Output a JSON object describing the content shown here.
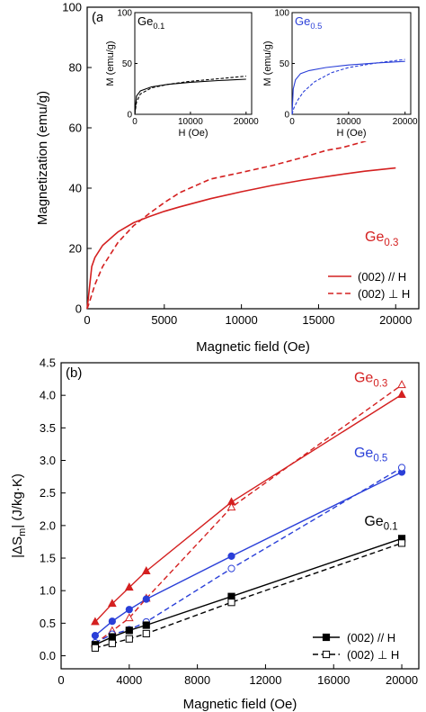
{
  "chart_data": [
    {
      "panel": "(a)",
      "type": "line",
      "xlabel": "Magnetic field (Oe)",
      "ylabel": "Magnetization (emu/g)",
      "xlim": [
        0,
        21500
      ],
      "ylim": [
        0,
        100
      ],
      "xticks": [
        0,
        5000,
        10000,
        15000,
        20000
      ],
      "yticks": [
        0,
        20,
        40,
        60,
        80,
        100
      ],
      "annotation": {
        "base": "Ge",
        "sub": "0.3"
      },
      "legend_position": "bottom-right",
      "series": [
        {
          "name": "(002) // H",
          "style": "solid",
          "color": "#d42020",
          "x": [
            0,
            300,
            500,
            1000,
            2000,
            3000,
            4000,
            5000,
            6000,
            8000,
            10000,
            12000,
            14000,
            16000,
            18000,
            20000
          ],
          "y": [
            0,
            14,
            17,
            21,
            25.5,
            28.5,
            30.5,
            32.3,
            33.8,
            36.5,
            38.8,
            40.9,
            42.7,
            44.2,
            45.6,
            46.7
          ]
        },
        {
          "name": "(002) ⊥ H",
          "style": "dashed",
          "color": "#d42020",
          "x": [
            0,
            200,
            500,
            1000,
            2000,
            3000,
            4000,
            5000,
            6000,
            8000,
            10000,
            12000,
            14000,
            15500,
            16500,
            18000,
            20000
          ],
          "y": [
            0,
            3,
            8,
            14,
            22,
            27.5,
            31.5,
            35.2,
            38.5,
            43,
            45.2,
            47.5,
            50.2,
            52.5,
            53.4,
            55.5,
            59
          ]
        }
      ],
      "insets": [
        {
          "label": {
            "base": "Ge",
            "sub": "0.1"
          },
          "label_color": "#000000",
          "xlabel": "H (Oe)",
          "ylabel": "M (emu/g)",
          "xlim": [
            0,
            21000
          ],
          "ylim": [
            0,
            100
          ],
          "xticks": [
            0,
            10000,
            20000
          ],
          "yticks": [
            0,
            50,
            100
          ],
          "series": [
            {
              "style": "solid",
              "color": "#000000",
              "x": [
                0,
                300,
                1000,
                3000,
                6000,
                10000,
                15000,
                20000
              ],
              "y": [
                0,
                18,
                23,
                27,
                29.5,
                31.5,
                33.2,
                34.5
              ]
            },
            {
              "style": "dashed",
              "color": "#000000",
              "x": [
                0,
                300,
                1000,
                3000,
                6000,
                10000,
                15000,
                20000
              ],
              "y": [
                0,
                12,
                20,
                26,
                29.5,
                32.5,
                35,
                37.5
              ]
            }
          ]
        },
        {
          "label": {
            "base": "Ge",
            "sub": "0.5"
          },
          "label_color": "#2a3fd8",
          "xlabel": "H (Oe)",
          "ylabel": "M (emu/g)",
          "xlim": [
            0,
            21000
          ],
          "ylim": [
            0,
            100
          ],
          "xticks": [
            0,
            10000,
            20000
          ],
          "yticks": [
            0,
            50,
            100
          ],
          "series": [
            {
              "style": "solid",
              "color": "#2a3fd8",
              "x": [
                0,
                200,
                600,
                1500,
                3000,
                6000,
                10000,
                15000,
                20000
              ],
              "y": [
                0,
                25,
                34,
                40,
                43,
                46,
                48.5,
                50.5,
                52
              ]
            },
            {
              "style": "dashed",
              "color": "#2a3fd8",
              "x": [
                0,
                300,
                1000,
                2000,
                4000,
                7000,
                10000,
                15000,
                20000
              ],
              "y": [
                0,
                6,
                14,
                22,
                32,
                41,
                46,
                50.5,
                54
              ]
            }
          ]
        }
      ]
    },
    {
      "panel": "(b)",
      "type": "scatter",
      "xlabel": "Magnetic field (Oe)",
      "ylabel": "|ΔSm| (J/kg·K)",
      "ylabel_parts": {
        "bar": "|",
        "delta": "ΔS",
        "sub": "m",
        "unit": "(J/kg·K)"
      },
      "xlim": [
        0,
        21000
      ],
      "ylim": [
        -0.2,
        4.5
      ],
      "xticks": [
        0,
        4000,
        8000,
        12000,
        16000,
        20000
      ],
      "yticks": [
        0.0,
        0.5,
        1.0,
        1.5,
        2.0,
        2.5,
        3.0,
        3.5,
        4.0,
        4.5
      ],
      "legend_position": "bottom-right",
      "legend": [
        {
          "label": "(002) // H",
          "style": "solid",
          "marker": "square",
          "filled": true
        },
        {
          "label": "(002) ⊥ H",
          "style": "dashed",
          "marker": "square",
          "filled": false
        }
      ],
      "labels": [
        {
          "base": "Ge",
          "sub": "0.3",
          "color": "#d42020",
          "x": 17200,
          "y": 4.2
        },
        {
          "base": "Ge",
          "sub": "0.5",
          "color": "#2a3fd8",
          "x": 17200,
          "y": 3.05
        },
        {
          "base": "Ge",
          "sub": "0.1",
          "color": "#000000",
          "x": 17800,
          "y": 2.0
        }
      ],
      "series": [
        {
          "name": "Ge0.3 // H",
          "color": "#d42020",
          "marker": "triangle",
          "filled": true,
          "style": "solid",
          "x": [
            2000,
            3000,
            4000,
            5000,
            10000,
            20000
          ],
          "y": [
            0.52,
            0.8,
            1.05,
            1.3,
            2.36,
            4.01
          ]
        },
        {
          "name": "Ge0.3 ⊥ H",
          "color": "#d42020",
          "marker": "triangle",
          "filled": false,
          "style": "dashed",
          "x": [
            2000,
            3000,
            4000,
            5000,
            10000,
            20000
          ],
          "y": [
            0.19,
            0.38,
            0.58,
            0.88,
            2.28,
            4.16
          ]
        },
        {
          "name": "Ge0.5 // H",
          "color": "#2a3fd8",
          "marker": "circle",
          "filled": true,
          "style": "solid",
          "x": [
            2000,
            3000,
            4000,
            5000,
            10000,
            20000
          ],
          "y": [
            0.31,
            0.53,
            0.71,
            0.87,
            1.53,
            2.82
          ]
        },
        {
          "name": "Ge0.5 ⊥ H",
          "color": "#2a3fd8",
          "marker": "circle",
          "filled": false,
          "style": "dashed",
          "x": [
            2000,
            3000,
            4000,
            5000,
            10000,
            20000
          ],
          "y": [
            0.2,
            0.33,
            0.4,
            0.52,
            1.34,
            2.89
          ]
        },
        {
          "name": "Ge0.1 // H",
          "color": "#000000",
          "marker": "square",
          "filled": true,
          "style": "solid",
          "x": [
            2000,
            3000,
            4000,
            5000,
            10000,
            20000
          ],
          "y": [
            0.17,
            0.29,
            0.39,
            0.47,
            0.91,
            1.8
          ]
        },
        {
          "name": "Ge0.1 ⊥ H",
          "color": "#000000",
          "marker": "square",
          "filled": false,
          "style": "dashed",
          "x": [
            2000,
            3000,
            4000,
            5000,
            10000,
            20000
          ],
          "y": [
            0.12,
            0.19,
            0.26,
            0.34,
            0.82,
            1.73
          ]
        }
      ]
    }
  ]
}
